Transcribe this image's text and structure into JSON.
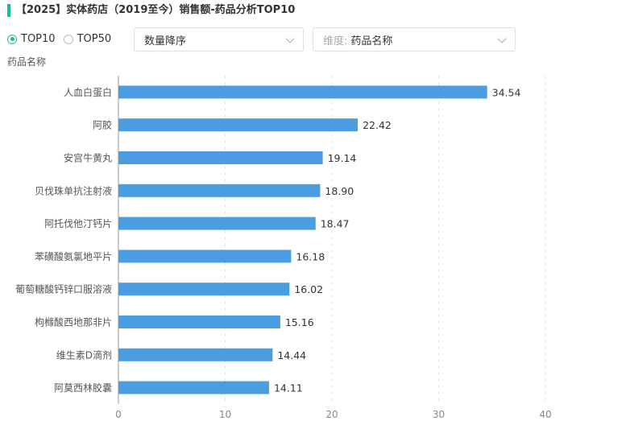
{
  "header": {
    "title": "【2025】实体药店（2019至今）销售额-药品分析TOP10"
  },
  "controls": {
    "radio_options": [
      {
        "label": "TOP10",
        "checked": true
      },
      {
        "label": "TOP50",
        "checked": false
      }
    ],
    "sort_select": {
      "value": "数量降序"
    },
    "dimension_select": {
      "prefix": "维度:",
      "value": "药品名称"
    }
  },
  "colors": {
    "bar": "#4a9de0",
    "accent": "#1bbc9b"
  },
  "chart_data": {
    "type": "bar",
    "orientation": "horizontal",
    "ylabel": "药品名称",
    "xlim": [
      0,
      40
    ],
    "xticks": [
      0,
      10,
      20,
      30,
      40
    ],
    "grid": true,
    "categories": [
      "人血白蛋白",
      "阿胶",
      "安宫牛黄丸",
      "贝伐珠单抗注射液",
      "阿托伐他汀钙片",
      "苯磺酸氨氯地平片",
      "葡萄糖酸钙锌口服溶液",
      "枸橼酸西地那非片",
      "维生素D滴剂",
      "阿莫西林胶囊"
    ],
    "values": [
      34.54,
      22.42,
      19.14,
      18.9,
      18.47,
      16.18,
      16.02,
      15.16,
      14.44,
      14.11
    ],
    "value_labels": [
      "34.54",
      "22.42",
      "19.14",
      "18.90",
      "18.47",
      "16.18",
      "16.02",
      "15.16",
      "14.44",
      "14.11"
    ]
  }
}
